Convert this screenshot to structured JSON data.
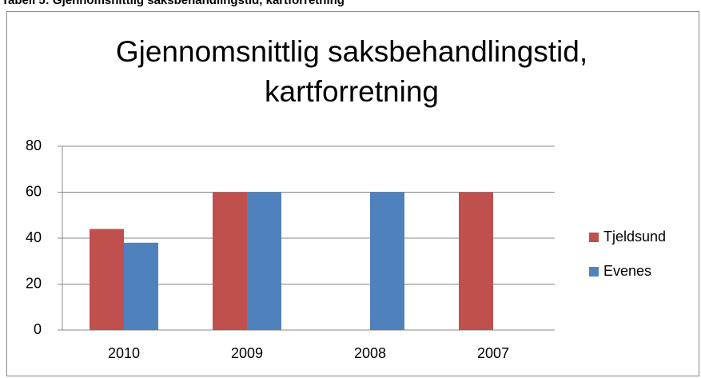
{
  "caption": "Tabell 5: Gjennomsnittlig saksbehandlingstid, kartforretning",
  "chart_data": {
    "type": "bar",
    "title": "Gjennomsnittlig saksbehandlingstid, kartforretning",
    "categories": [
      "2010",
      "2009",
      "2008",
      "2007"
    ],
    "series": [
      {
        "name": "Tjeldsund",
        "color": "#c0504d",
        "values": [
          44,
          60,
          null,
          60
        ]
      },
      {
        "name": "Evenes",
        "color": "#4f81bd",
        "values": [
          38,
          60,
          60,
          null
        ]
      }
    ],
    "ylim": [
      0,
      80
    ],
    "yticks": [
      0,
      20,
      40,
      60,
      80
    ],
    "grid": true,
    "legend": "right"
  }
}
